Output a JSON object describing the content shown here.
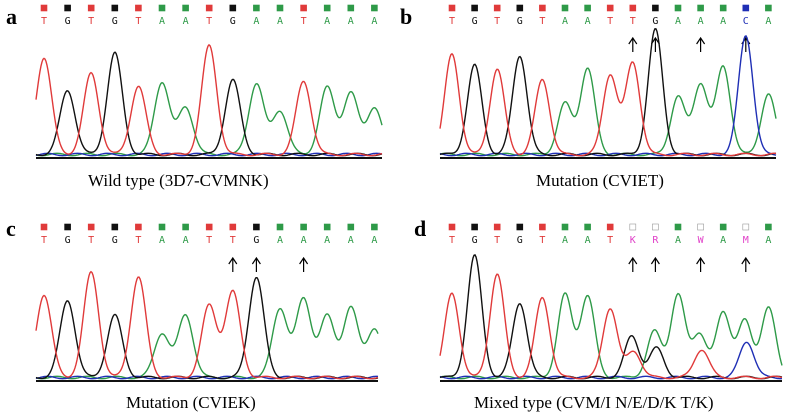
{
  "colors": {
    "A": "#2e9a48",
    "C": "#1f2fb5",
    "G": "#111111",
    "T": "#e03a3a",
    "X": "#e040c8"
  },
  "panels": [
    {
      "label": "a",
      "caption": "Wild type  (3D7-CVMNK)",
      "bases": [
        "T",
        "G",
        "T",
        "G",
        "T",
        "A",
        "A",
        "T",
        "G",
        "A",
        "A",
        "T",
        "A",
        "A",
        "A"
      ],
      "arrows": []
    },
    {
      "label": "b",
      "caption": "Mutation  (CVIET)",
      "bases": [
        "T",
        "G",
        "T",
        "G",
        "T",
        "A",
        "A",
        "T",
        "T",
        "G",
        "A",
        "A",
        "A",
        "C",
        "A"
      ],
      "arrows": [
        8,
        9,
        11,
        13
      ]
    },
    {
      "label": "c",
      "caption": "Mutation  (CVIEK)",
      "bases": [
        "T",
        "G",
        "T",
        "G",
        "T",
        "A",
        "A",
        "T",
        "T",
        "G",
        "A",
        "A",
        "A",
        "A",
        "A"
      ],
      "arrows": [
        8,
        9,
        11
      ]
    },
    {
      "label": "d",
      "caption": "Mixed type  (CVM/I N/E/D/K T/K)",
      "bases": [
        "T",
        "G",
        "T",
        "G",
        "T",
        "A",
        "A",
        "T",
        "K",
        "R",
        "A",
        "W",
        "A",
        "M",
        "A"
      ],
      "arrows": [
        8,
        9,
        11,
        13
      ]
    }
  ]
}
